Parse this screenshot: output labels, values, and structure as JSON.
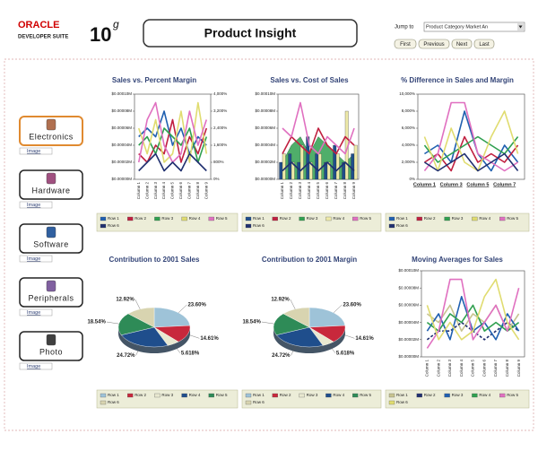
{
  "header": {
    "logo_brand": "ORACLE",
    "logo_suite": "DEVELOPER SUITE",
    "logo_version": "10",
    "logo_suffix": "g",
    "title": "Product Insight",
    "jump_label": "Jump to",
    "jump_value": "Product Category Market An",
    "buttons": [
      "First",
      "Previous",
      "Next",
      "Last"
    ]
  },
  "nav": [
    {
      "label": "Electronics",
      "link": "Image"
    },
    {
      "label": "Hardware",
      "link": "Image"
    },
    {
      "label": "Software",
      "link": "Image"
    },
    {
      "label": "Peripherals",
      "link": "Image"
    },
    {
      "label": "Photo",
      "link": "Image"
    }
  ],
  "chart_data": [
    {
      "type": "line",
      "title": "Sales vs. Percent Margin",
      "categories": [
        "Column 1",
        "Column 2",
        "Column 3",
        "Column 4",
        "Column 5",
        "Column 6",
        "Column 7",
        "Column 8",
        "Column 9"
      ],
      "ylim": [
        0,
        0.0001
      ],
      "yticks": [
        {
          "value": 0,
          "label": "$0.00000M"
        },
        {
          "value": 2e-05,
          "label": "$0.00002M"
        },
        {
          "value": 4e-05,
          "label": "$0.00004M"
        },
        {
          "value": 6e-05,
          "label": "$0.00006M"
        },
        {
          "value": 8e-05,
          "label": "$0.00008M"
        },
        {
          "value": 0.0001,
          "label": "$0.00010M"
        }
      ],
      "y2lim": [
        0,
        4000
      ],
      "y2ticks": [
        {
          "value": 0,
          "label": "0%"
        },
        {
          "value": 800,
          "label": "800%"
        },
        {
          "value": 1600,
          "label": "1,600%"
        },
        {
          "value": 2400,
          "label": "2,400%"
        },
        {
          "value": 3200,
          "label": "3,200%"
        },
        {
          "value": 4000,
          "label": "4,000%"
        }
      ],
      "series": [
        {
          "name": "Row 1",
          "color": "#2060b0",
          "values": [
            5e-05,
            6e-05,
            5e-05,
            8e-05,
            4e-05,
            6e-05,
            3e-05,
            5e-05,
            4e-05
          ]
        },
        {
          "name": "Row 2",
          "color": "#c02040",
          "values": [
            3e-05,
            2e-05,
            4e-05,
            3e-05,
            7e-05,
            2e-05,
            5e-05,
            3e-05,
            6e-05
          ]
        },
        {
          "name": "Row 3",
          "color": "#30a050",
          "values": [
            4e-05,
            5e-05,
            3e-05,
            6e-05,
            5e-05,
            4e-05,
            6e-05,
            2e-05,
            5e-05
          ]
        },
        {
          "name": "Row 4",
          "color": "#e0dc70",
          "values": [
            6e-05,
            3e-05,
            7e-05,
            2e-05,
            3e-05,
            8e-05,
            2e-05,
            9e-05,
            3e-05
          ]
        },
        {
          "name": "Row 5",
          "color": "#e070c0",
          "values": [
            2e-05,
            7e-05,
            9e-05,
            4e-05,
            2e-05,
            3e-05,
            8e-05,
            4e-05,
            7e-05
          ]
        },
        {
          "name": "Row 6",
          "color": "#203070",
          "values": [
            1e-05,
            2e-05,
            3e-05,
            1e-05,
            2e-05,
            1e-05,
            3e-05,
            2e-05,
            1e-05
          ]
        }
      ]
    },
    {
      "type": "combo",
      "title": "Sales vs. Cost of Sales",
      "categories": [
        "Column 1",
        "Column 2",
        "Column 3",
        "Column 4",
        "Column 5",
        "Column 6",
        "Column 7",
        "Column 8",
        "Column 9"
      ],
      "ylim": [
        0,
        0.0001
      ],
      "yticks": [
        {
          "value": 0,
          "label": "$0.00000M"
        },
        {
          "value": 2e-05,
          "label": "$0.00002M"
        },
        {
          "value": 4e-05,
          "label": "$0.00004M"
        },
        {
          "value": 6e-05,
          "label": "$0.00006M"
        },
        {
          "value": 8e-05,
          "label": "$0.00008M"
        },
        {
          "value": 0.0001,
          "label": "$0.00010M"
        }
      ],
      "series": [
        {
          "name": "Row 1",
          "color": "#1f4e8c",
          "mark": "bar",
          "values": [
            2e-05,
            3e-05,
            2e-05,
            5e-05,
            3e-05,
            2e-05,
            4e-05,
            2e-05,
            3e-05
          ]
        },
        {
          "name": "Row 2",
          "color": "#c02040",
          "mark": "line",
          "values": [
            3e-05,
            5e-05,
            4e-05,
            3e-05,
            6e-05,
            4e-05,
            3e-05,
            5e-05,
            4e-05
          ]
        },
        {
          "name": "Row 3",
          "color": "#30a050",
          "mark": "area",
          "values": [
            2e-05,
            4e-05,
            5e-05,
            3e-05,
            5e-05,
            4e-05,
            3e-05,
            2e-05,
            3e-05
          ]
        },
        {
          "name": "Row 4",
          "color": "#eeeaa8",
          "mark": "bar",
          "values": [
            3e-05,
            2e-05,
            4e-05,
            2e-05,
            3e-05,
            2e-05,
            3e-05,
            8e-05,
            4e-05
          ]
        },
        {
          "name": "Row 5",
          "color": "#e070c0",
          "mark": "line",
          "values": [
            6e-05,
            5e-05,
            9e-05,
            4e-05,
            3e-05,
            5e-05,
            4e-05,
            3e-05,
            6e-05
          ]
        },
        {
          "name": "Row 6",
          "color": "#203070",
          "mark": "line",
          "values": [
            1e-05,
            2e-05,
            1e-05,
            2e-05,
            1e-05,
            2e-05,
            1e-05,
            2e-05,
            1e-05
          ]
        }
      ]
    },
    {
      "type": "line",
      "title": "% Difference in Sales and Margin",
      "categories": [
        "Column 1",
        null,
        "Column 3",
        null,
        "Column 5",
        null,
        "Column 7",
        null
      ],
      "ylim": [
        0,
        10000
      ],
      "yticks": [
        {
          "value": 0,
          "label": "0%"
        },
        {
          "value": 2000,
          "label": "2,000%"
        },
        {
          "value": 4000,
          "label": "4,000%"
        },
        {
          "value": 6000,
          "label": "6,000%"
        },
        {
          "value": 8000,
          "label": "8,000%"
        },
        {
          "value": 10000,
          "label": "10,000%"
        }
      ],
      "series": [
        {
          "name": "Row 1",
          "color": "#2060b0",
          "values": [
            3000,
            4000,
            2000,
            8000,
            3000,
            1000,
            4000,
            2000
          ]
        },
        {
          "name": "Row 2",
          "color": "#c02040",
          "values": [
            2000,
            3000,
            1000,
            5000,
            2000,
            3000,
            2000,
            4000
          ]
        },
        {
          "name": "Row 3",
          "color": "#30a050",
          "values": [
            4000,
            2000,
            3000,
            4000,
            5000,
            4000,
            3000,
            5000
          ]
        },
        {
          "name": "Row 4",
          "color": "#e0dc70",
          "values": [
            5000,
            1000,
            6000,
            2000,
            1000,
            5000,
            8000,
            3000
          ]
        },
        {
          "name": "Row 5",
          "color": "#e070c0",
          "values": [
            1000,
            3000,
            9000,
            9000,
            3000,
            2000,
            1000,
            2000
          ]
        },
        {
          "name": "Row 6",
          "color": "#203070",
          "values": [
            2000,
            1000,
            2000,
            3000,
            1000,
            2000,
            3000,
            1000
          ]
        }
      ]
    },
    {
      "type": "pie",
      "title": "Contribution to 2001 Sales",
      "series": [
        {
          "name": "Row 1",
          "color": "#9ec3d8"
        },
        {
          "name": "Row 2",
          "color": "#c8283c"
        },
        {
          "name": "Row 3",
          "color": "#e8e8d0"
        },
        {
          "name": "Row 4",
          "color": "#1f4e8c"
        },
        {
          "name": "Row 5",
          "color": "#2e8b57"
        },
        {
          "name": "Row 6",
          "color": "#d8d4b0"
        }
      ],
      "values": [
        23.6,
        14.61,
        5.618,
        24.72,
        18.54,
        12.92
      ],
      "value_labels": [
        "23.60%",
        "14.61%",
        "5.618%",
        "24.72%",
        "18.54%",
        "12.92%"
      ]
    },
    {
      "type": "pie",
      "title": "Contribution to 2001 Margin",
      "series": [
        {
          "name": "Row 1",
          "color": "#9ec3d8"
        },
        {
          "name": "Row 2",
          "color": "#c8283c"
        },
        {
          "name": "Row 3",
          "color": "#e8e8d0"
        },
        {
          "name": "Row 4",
          "color": "#1f4e8c"
        },
        {
          "name": "Row 5",
          "color": "#2e8b57"
        },
        {
          "name": "Row 6",
          "color": "#d8d4b0"
        }
      ],
      "values": [
        23.6,
        14.61,
        5.618,
        24.72,
        18.54,
        12.92
      ],
      "value_labels": [
        "23.60%",
        "14.61%",
        "5.618%",
        "24.72%",
        "18.54%",
        "12.92%"
      ]
    },
    {
      "type": "line",
      "title": "Moving Averages for Sales",
      "categories": [
        "Column 1",
        "Column 2",
        "Column 3",
        "Column 4",
        "Column 5",
        "Column 6",
        "Column 7",
        "Column 8",
        "Column 9"
      ],
      "ylim": [
        0,
        0.0001
      ],
      "yticks": [
        {
          "value": 0,
          "label": "$0.00000M"
        },
        {
          "value": 2e-05,
          "label": "$0.00002M"
        },
        {
          "value": 4e-05,
          "label": "$0.00004M"
        },
        {
          "value": 6e-05,
          "label": "$0.00006M"
        },
        {
          "value": 8e-05,
          "label": "$0.00008M"
        },
        {
          "value": 0.0001,
          "label": "$0.00010M"
        }
      ],
      "series": [
        {
          "name": "Row 1",
          "color": "#c8c490",
          "values": [
            5e-05,
            4e-05,
            6e-05,
            3e-05,
            5e-05,
            4e-05,
            6e-05,
            3e-05,
            5e-05
          ]
        },
        {
          "name": "Row 2",
          "color": "#203070",
          "dash": true,
          "values": [
            2e-05,
            3e-05,
            3e-05,
            4e-05,
            3e-05,
            2e-05,
            3e-05,
            4e-05,
            3e-05
          ]
        },
        {
          "name": "Row 3",
          "color": "#2060b0",
          "values": [
            3e-05,
            5e-05,
            2e-05,
            7e-05,
            3e-05,
            4e-05,
            2e-05,
            5e-05,
            3e-05
          ]
        },
        {
          "name": "Row 4",
          "color": "#30a050",
          "values": [
            4e-05,
            3e-05,
            5e-05,
            4e-05,
            6e-05,
            3e-05,
            4e-05,
            3e-05,
            4e-05
          ]
        },
        {
          "name": "Row 5",
          "color": "#e070c0",
          "values": [
            1e-05,
            3e-05,
            9e-05,
            9e-05,
            2e-05,
            4e-05,
            6e-05,
            3e-05,
            8e-05
          ]
        },
        {
          "name": "Row 6",
          "color": "#e0dc70",
          "values": [
            6e-05,
            2e-05,
            4e-05,
            2e-05,
            3e-05,
            7e-05,
            9e-05,
            4e-05,
            2e-05
          ]
        }
      ]
    }
  ]
}
